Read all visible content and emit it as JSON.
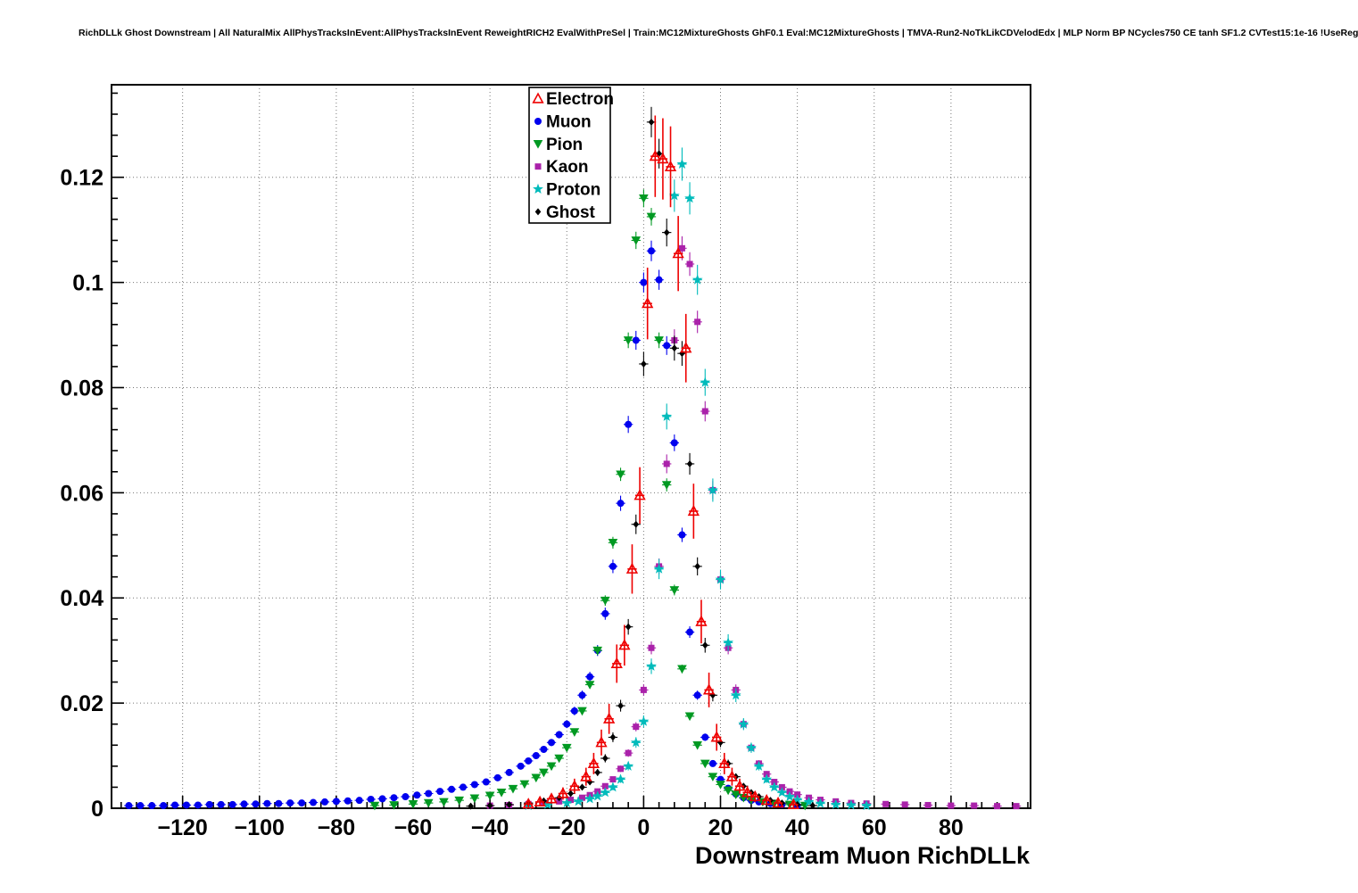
{
  "header": {
    "title": "RichDLLk Ghost Downstream | All NaturalMix AllPhysTracksInEvent:AllPhysTracksInEvent ReweightRICH2 EvalWithPreSel | Train:MC12MixtureGhosts GhF0.1 Eval:MC12MixtureGhosts | TMVA-Run2-NoTkLikCDVelodEdx | MLP Norm BP NCycles750 CE tanh SF1.2 CVTest15:1e-16 !UseReg"
  },
  "chart_data": {
    "type": "scatter",
    "title": "",
    "xlabel": "Downstream Muon RichDLLk",
    "ylabel": "",
    "xlim": [
      -138.5,
      100.7
    ],
    "ylim": [
      0,
      0.1376
    ],
    "xticks": [
      -120,
      -100,
      -80,
      -60,
      -40,
      -20,
      0,
      20,
      40,
      60,
      80
    ],
    "yticks": [
      0,
      0.02,
      0.04,
      0.06,
      0.08,
      0.1,
      0.12
    ],
    "grid": "dotted",
    "legend_position": "top-center",
    "grid_color": "#777777",
    "series": [
      {
        "name": "Electron",
        "color": "#ee0000",
        "marker": "triangle-up-open",
        "err_scale": 0.022,
        "points": [
          [
            -30,
            0.0008
          ],
          [
            -27,
            0.0012
          ],
          [
            -24,
            0.0018
          ],
          [
            -21,
            0.0028
          ],
          [
            -18,
            0.0042
          ],
          [
            -15,
            0.006
          ],
          [
            -13,
            0.0085
          ],
          [
            -11,
            0.0125
          ],
          [
            -9,
            0.017
          ],
          [
            -7,
            0.0275
          ],
          [
            -5,
            0.031
          ],
          [
            -3,
            0.0455
          ],
          [
            -1,
            0.0595
          ],
          [
            1,
            0.096
          ],
          [
            3,
            0.124
          ],
          [
            5,
            0.1235
          ],
          [
            7,
            0.122
          ],
          [
            9,
            0.1055
          ],
          [
            11,
            0.0875
          ],
          [
            13,
            0.0565
          ],
          [
            15,
            0.0355
          ],
          [
            17,
            0.0225
          ],
          [
            19,
            0.0135
          ],
          [
            21,
            0.0085
          ],
          [
            23,
            0.006
          ],
          [
            25,
            0.0042
          ],
          [
            27,
            0.003
          ],
          [
            29,
            0.0022
          ],
          [
            32,
            0.0015
          ],
          [
            35,
            0.001
          ],
          [
            39,
            0.0007
          ]
        ]
      },
      {
        "name": "Muon",
        "color": "#0000ee",
        "marker": "circle",
        "err_scale": 0.006,
        "points": [
          [
            -134,
            0.0005
          ],
          [
            -131,
            0.0005
          ],
          [
            -128,
            0.0005
          ],
          [
            -125,
            0.0005
          ],
          [
            -122,
            0.0006
          ],
          [
            -119,
            0.0006
          ],
          [
            -116,
            0.0006
          ],
          [
            -113,
            0.0007
          ],
          [
            -110,
            0.0007
          ],
          [
            -107,
            0.0007
          ],
          [
            -104,
            0.0008
          ],
          [
            -101,
            0.0008
          ],
          [
            -98,
            0.0009
          ],
          [
            -95,
            0.0009
          ],
          [
            -92,
            0.001
          ],
          [
            -89,
            0.001
          ],
          [
            -86,
            0.0011
          ],
          [
            -83,
            0.0012
          ],
          [
            -80,
            0.0013
          ],
          [
            -77,
            0.0014
          ],
          [
            -74,
            0.0015
          ],
          [
            -71,
            0.0017
          ],
          [
            -68,
            0.0018
          ],
          [
            -65,
            0.002
          ],
          [
            -62,
            0.0022
          ],
          [
            -59,
            0.0025
          ],
          [
            -56,
            0.0028
          ],
          [
            -53,
            0.0032
          ],
          [
            -50,
            0.0036
          ],
          [
            -47,
            0.004
          ],
          [
            -44,
            0.0045
          ],
          [
            -41,
            0.005
          ],
          [
            -38,
            0.0058
          ],
          [
            -35,
            0.0068
          ],
          [
            -32,
            0.008
          ],
          [
            -30,
            0.009
          ],
          [
            -28,
            0.01
          ],
          [
            -26,
            0.0112
          ],
          [
            -24,
            0.0125
          ],
          [
            -22,
            0.014
          ],
          [
            -20,
            0.016
          ],
          [
            -18,
            0.0185
          ],
          [
            -16,
            0.0215
          ],
          [
            -14,
            0.025
          ],
          [
            -12,
            0.03
          ],
          [
            -10,
            0.037
          ],
          [
            -8,
            0.046
          ],
          [
            -6,
            0.058
          ],
          [
            -4,
            0.073
          ],
          [
            -2,
            0.089
          ],
          [
            0,
            0.1
          ],
          [
            2,
            0.106
          ],
          [
            4,
            0.1005
          ],
          [
            6,
            0.088
          ],
          [
            8,
            0.0695
          ],
          [
            10,
            0.052
          ],
          [
            12,
            0.0335
          ],
          [
            14,
            0.0215
          ],
          [
            16,
            0.0135
          ],
          [
            18,
            0.0085
          ],
          [
            20,
            0.0055
          ],
          [
            22,
            0.0038
          ],
          [
            24,
            0.0027
          ],
          [
            26,
            0.002
          ],
          [
            28,
            0.0015
          ],
          [
            30,
            0.0012
          ],
          [
            33,
            0.0009
          ],
          [
            36,
            0.0007
          ],
          [
            40,
            0.0005
          ]
        ]
      },
      {
        "name": "Pion",
        "color": "#009922",
        "marker": "triangle-down",
        "err_scale": 0.005,
        "points": [
          [
            -70,
            0.0005
          ],
          [
            -65,
            0.0006
          ],
          [
            -60,
            0.0008
          ],
          [
            -56,
            0.001
          ],
          [
            -52,
            0.0012
          ],
          [
            -48,
            0.0015
          ],
          [
            -44,
            0.0019
          ],
          [
            -40,
            0.0024
          ],
          [
            -37,
            0.003
          ],
          [
            -34,
            0.0037
          ],
          [
            -31,
            0.0046
          ],
          [
            -28,
            0.0058
          ],
          [
            -26,
            0.0068
          ],
          [
            -24,
            0.008
          ],
          [
            -22,
            0.0095
          ],
          [
            -20,
            0.0115
          ],
          [
            -18,
            0.0145
          ],
          [
            -16,
            0.0185
          ],
          [
            -14,
            0.0235
          ],
          [
            -12,
            0.03
          ],
          [
            -10,
            0.0395
          ],
          [
            -8,
            0.0505
          ],
          [
            -6,
            0.0635
          ],
          [
            -4,
            0.089
          ],
          [
            -2,
            0.108
          ],
          [
            0,
            0.116
          ],
          [
            2,
            0.1125
          ],
          [
            4,
            0.089
          ],
          [
            6,
            0.0615
          ],
          [
            8,
            0.0415
          ],
          [
            10,
            0.0265
          ],
          [
            12,
            0.0175
          ],
          [
            14,
            0.012
          ],
          [
            16,
            0.0085
          ],
          [
            18,
            0.006
          ],
          [
            20,
            0.0045
          ],
          [
            22,
            0.0034
          ],
          [
            24,
            0.0026
          ],
          [
            26,
            0.002
          ],
          [
            28,
            0.0016
          ],
          [
            31,
            0.0012
          ],
          [
            34,
            0.0009
          ],
          [
            38,
            0.0007
          ],
          [
            42,
            0.0005
          ]
        ]
      },
      {
        "name": "Kaon",
        "color": "#aa22aa",
        "marker": "square",
        "err_scale": 0.007,
        "points": [
          [
            -40,
            0.0005
          ],
          [
            -35,
            0.0006
          ],
          [
            -30,
            0.0008
          ],
          [
            -26,
            0.001
          ],
          [
            -22,
            0.0013
          ],
          [
            -19,
            0.0016
          ],
          [
            -16,
            0.002
          ],
          [
            -14,
            0.0025
          ],
          [
            -12,
            0.0032
          ],
          [
            -10,
            0.0042
          ],
          [
            -8,
            0.0055
          ],
          [
            -6,
            0.0075
          ],
          [
            -4,
            0.0105
          ],
          [
            -2,
            0.0155
          ],
          [
            0,
            0.0225
          ],
          [
            2,
            0.0305
          ],
          [
            4,
            0.046
          ],
          [
            6,
            0.0655
          ],
          [
            8,
            0.089
          ],
          [
            10,
            0.1065
          ],
          [
            12,
            0.1035
          ],
          [
            14,
            0.0925
          ],
          [
            16,
            0.0755
          ],
          [
            18,
            0.0605
          ],
          [
            20,
            0.0435
          ],
          [
            22,
            0.0305
          ],
          [
            24,
            0.0225
          ],
          [
            26,
            0.016
          ],
          [
            28,
            0.0115
          ],
          [
            30,
            0.0085
          ],
          [
            32,
            0.0065
          ],
          [
            34,
            0.005
          ],
          [
            36,
            0.004
          ],
          [
            38,
            0.0032
          ],
          [
            40,
            0.0026
          ],
          [
            43,
            0.002
          ],
          [
            46,
            0.0016
          ],
          [
            50,
            0.0013
          ],
          [
            54,
            0.001
          ],
          [
            58,
            0.0009
          ],
          [
            63,
            0.0008
          ],
          [
            68,
            0.0007
          ],
          [
            74,
            0.0006
          ],
          [
            80,
            0.0005
          ],
          [
            86,
            0.0005
          ],
          [
            92,
            0.0004
          ],
          [
            97,
            0.0004
          ]
        ]
      },
      {
        "name": "Proton",
        "color": "#00bbbb",
        "marker": "star",
        "err_scale": 0.009,
        "points": [
          [
            -30,
            0.0005
          ],
          [
            -25,
            0.0007
          ],
          [
            -20,
            0.001
          ],
          [
            -17,
            0.0013
          ],
          [
            -14,
            0.0018
          ],
          [
            -12,
            0.0023
          ],
          [
            -10,
            0.003
          ],
          [
            -8,
            0.004
          ],
          [
            -6,
            0.0055
          ],
          [
            -4,
            0.008
          ],
          [
            -2,
            0.0125
          ],
          [
            0,
            0.0165
          ],
          [
            2,
            0.027
          ],
          [
            4,
            0.0455
          ],
          [
            6,
            0.0745
          ],
          [
            8,
            0.1165
          ],
          [
            10,
            0.1225
          ],
          [
            12,
            0.116
          ],
          [
            14,
            0.1005
          ],
          [
            16,
            0.081
          ],
          [
            18,
            0.0605
          ],
          [
            20,
            0.0435
          ],
          [
            22,
            0.0315
          ],
          [
            24,
            0.0215
          ],
          [
            26,
            0.016
          ],
          [
            28,
            0.0115
          ],
          [
            30,
            0.008
          ],
          [
            32,
            0.0055
          ],
          [
            34,
            0.004
          ],
          [
            36,
            0.003
          ],
          [
            38,
            0.0022
          ],
          [
            40,
            0.0016
          ],
          [
            43,
            0.0012
          ],
          [
            46,
            0.0009
          ],
          [
            50,
            0.0007
          ],
          [
            54,
            0.0006
          ],
          [
            58,
            0.0005
          ]
        ]
      },
      {
        "name": "Ghost",
        "color": "#000000",
        "marker": "diamond",
        "err_scale": 0.008,
        "points": [
          [
            -45,
            0.0004
          ],
          [
            -40,
            0.0005
          ],
          [
            -35,
            0.0007
          ],
          [
            -30,
            0.001
          ],
          [
            -26,
            0.0014
          ],
          [
            -22,
            0.002
          ],
          [
            -19,
            0.0028
          ],
          [
            -16,
            0.004
          ],
          [
            -14,
            0.005
          ],
          [
            -12,
            0.0068
          ],
          [
            -10,
            0.0095
          ],
          [
            -8,
            0.0135
          ],
          [
            -6,
            0.0195
          ],
          [
            -4,
            0.0345
          ],
          [
            -2,
            0.054
          ],
          [
            0,
            0.0845
          ],
          [
            2,
            0.1305
          ],
          [
            4,
            0.1245
          ],
          [
            6,
            0.1095
          ],
          [
            8,
            0.0875
          ],
          [
            10,
            0.0865
          ],
          [
            12,
            0.0655
          ],
          [
            14,
            0.046
          ],
          [
            16,
            0.031
          ],
          [
            18,
            0.0215
          ],
          [
            20,
            0.0125
          ],
          [
            22,
            0.0085
          ],
          [
            24,
            0.006
          ],
          [
            26,
            0.0042
          ],
          [
            28,
            0.003
          ],
          [
            30,
            0.0022
          ],
          [
            33,
            0.0015
          ],
          [
            36,
            0.001
          ],
          [
            40,
            0.0007
          ],
          [
            44,
            0.0005
          ]
        ]
      }
    ]
  }
}
